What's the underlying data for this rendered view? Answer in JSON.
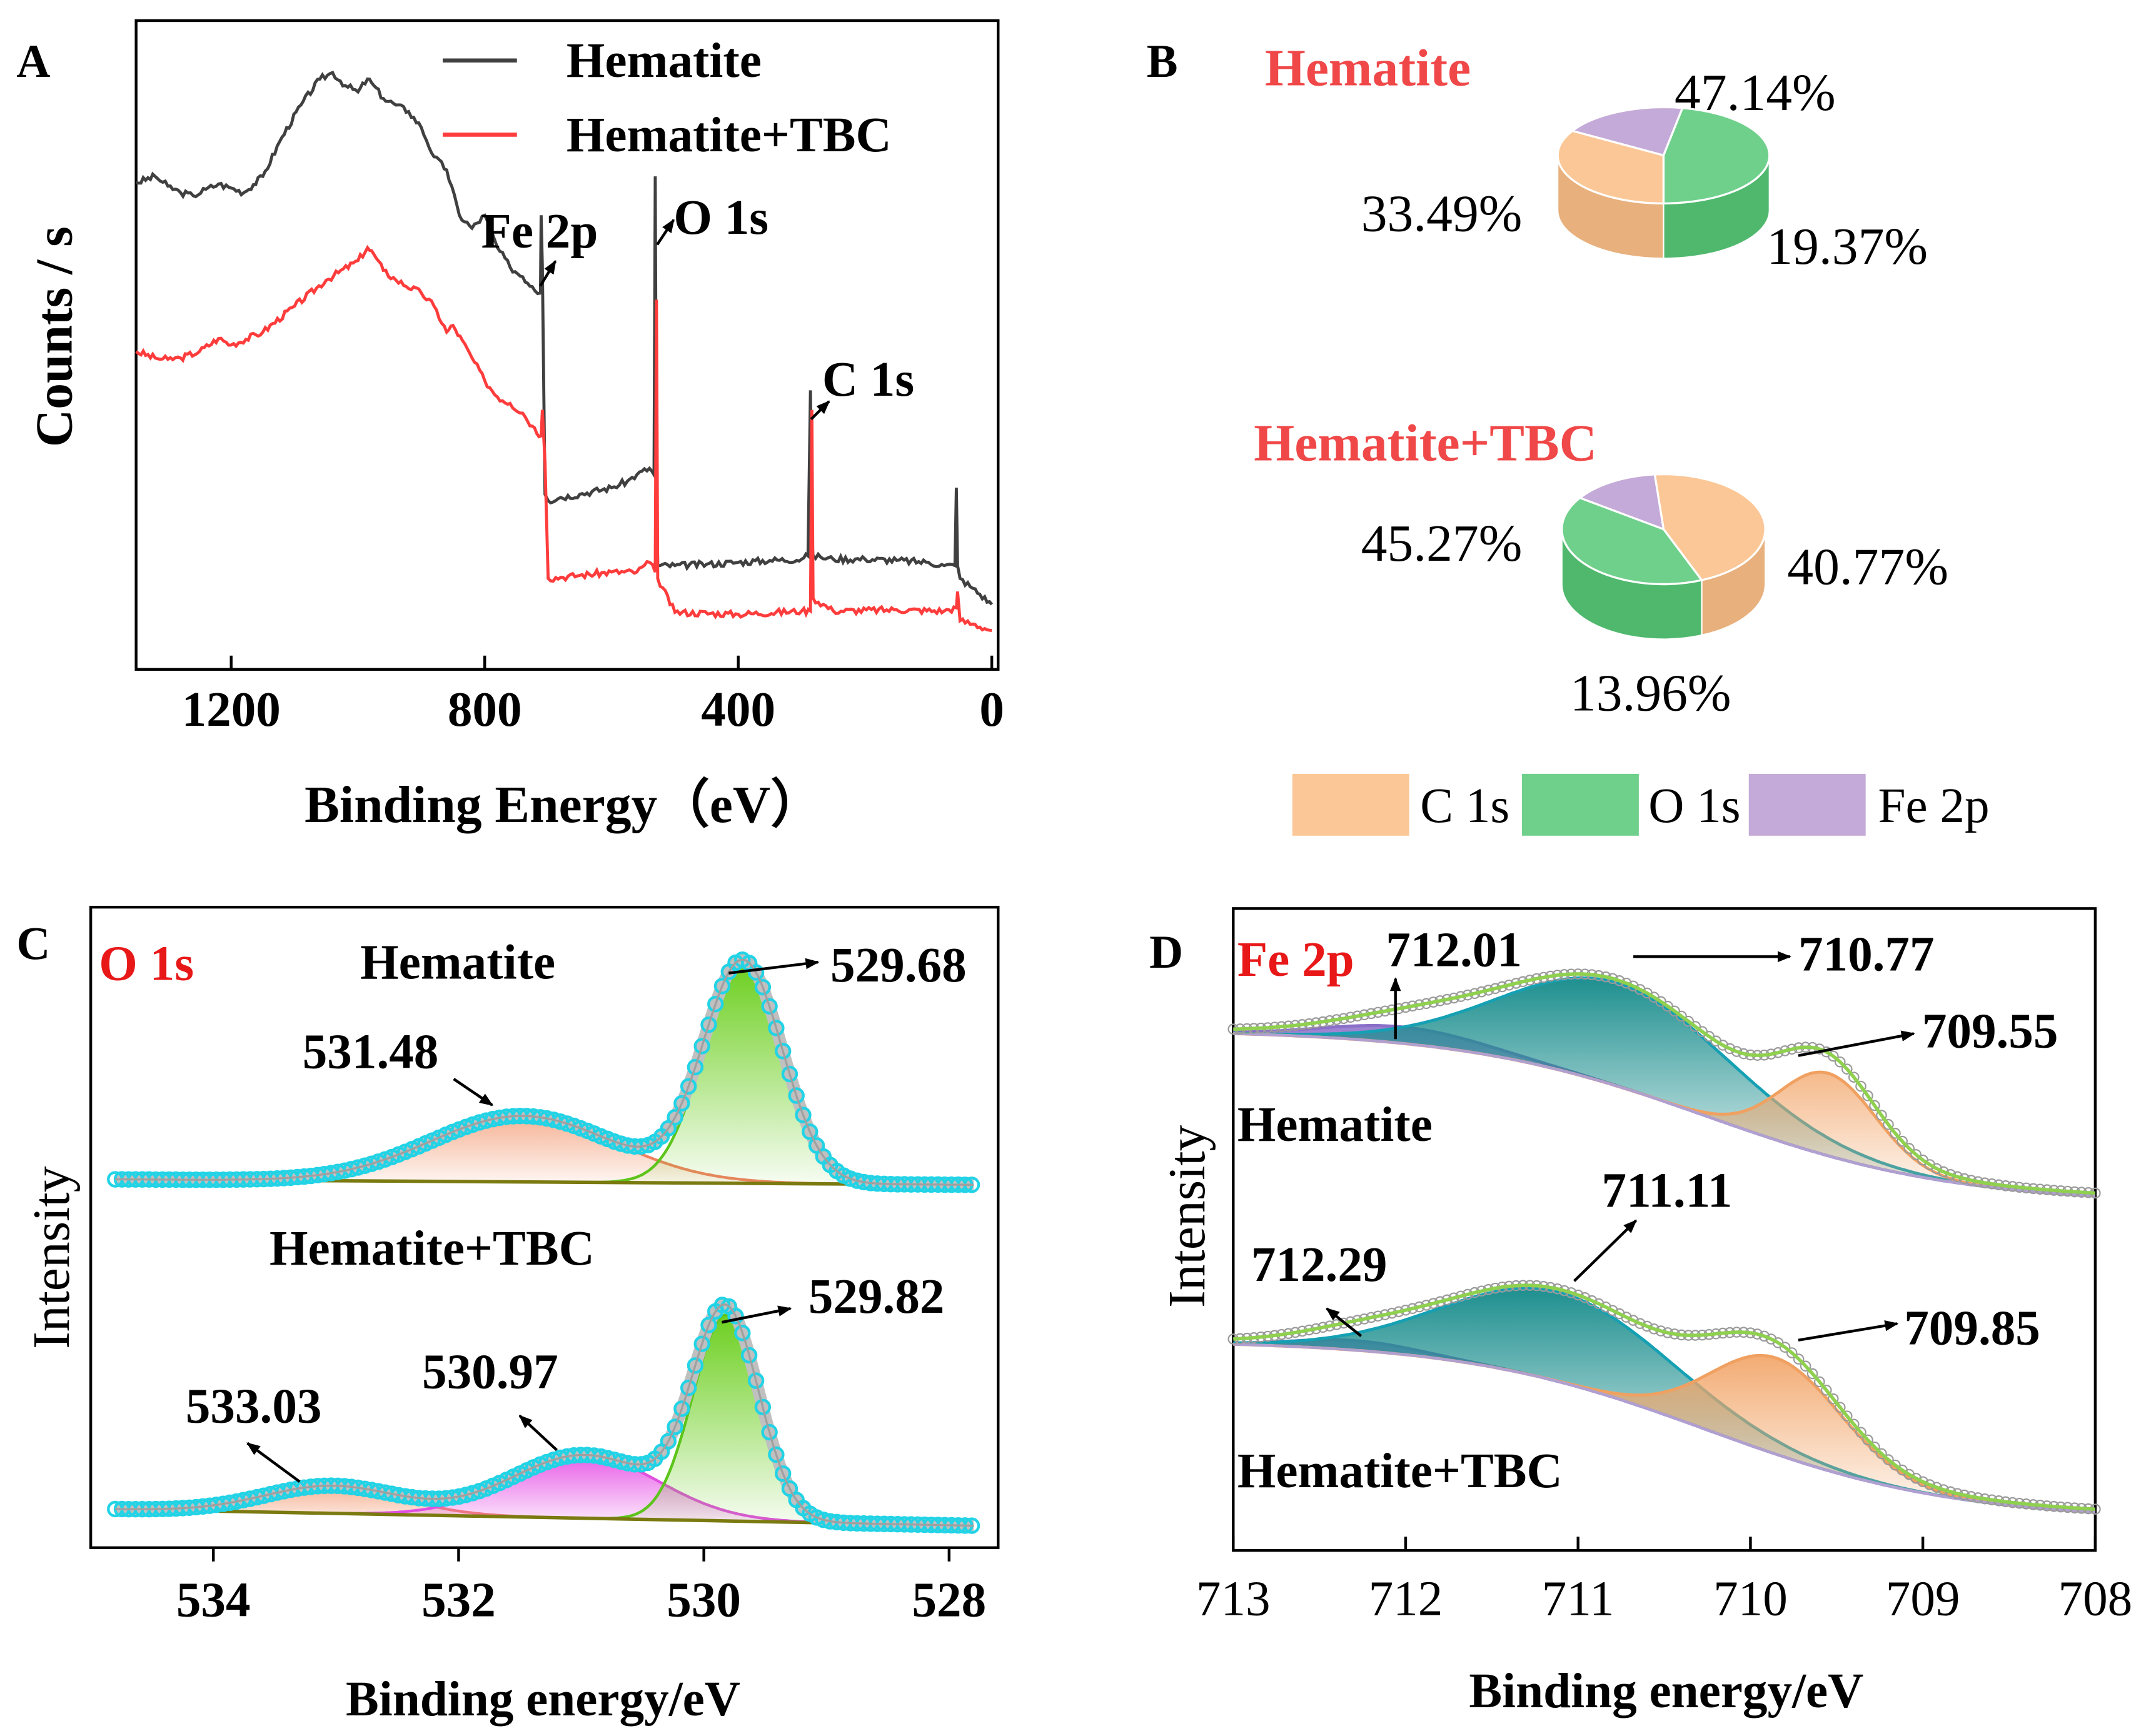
{
  "chart_data": [
    {
      "panel": "A",
      "type": "line",
      "xlabel": "Binding Energy（eV）",
      "ylabel": "Counts / s",
      "xlim": [
        1350,
        -10
      ],
      "ylim": [
        0,
        1000
      ],
      "xticks": [
        "1200",
        "800",
        "400",
        "0"
      ],
      "xtick_values": [
        1200,
        800,
        400,
        0
      ],
      "series": [
        {
          "name": "Hematite",
          "color": "#404040",
          "x": [
            1350,
            1320,
            1300,
            1280,
            1260,
            1240,
            1220,
            1200,
            1180,
            1150,
            1120,
            1090,
            1060,
            1040,
            1020,
            1000,
            985,
            975,
            960,
            940,
            920,
            900,
            880,
            860,
            840,
            820,
            800,
            780,
            760,
            740,
            725,
            712,
            711,
            709,
            705,
            700,
            680,
            650,
            600,
            575,
            560,
            540,
            533,
            531,
            529,
            527,
            500,
            450,
            400,
            350,
            300,
            290,
            286,
            284,
            282,
            270,
            250,
            200,
            150,
            100,
            75,
            58,
            56,
            54,
            50,
            30,
            0
          ],
          "y": [
            750,
            760,
            745,
            735,
            730,
            740,
            748,
            742,
            735,
            760,
            820,
            870,
            910,
            920,
            900,
            890,
            910,
            900,
            880,
            870,
            860,
            835,
            790,
            770,
            700,
            680,
            700,
            650,
            620,
            605,
            590,
            580,
            700,
            620,
            270,
            260,
            265,
            270,
            280,
            290,
            300,
            310,
            300,
            760,
            290,
            160,
            160,
            162,
            165,
            168,
            170,
            175,
            430,
            200,
            175,
            173,
            170,
            170,
            168,
            165,
            160,
            160,
            280,
            160,
            140,
            125,
            100
          ]
        },
        {
          "name": "Hematite+TBC",
          "color": "#ff3c3c",
          "x": [
            1350,
            1320,
            1300,
            1280,
            1250,
            1220,
            1200,
            1150,
            1100,
            1050,
            1000,
            985,
            975,
            960,
            940,
            900,
            880,
            860,
            850,
            820,
            800,
            780,
            760,
            740,
            725,
            711,
            709,
            705,
            700,
            680,
            650,
            600,
            560,
            540,
            531,
            529,
            527,
            500,
            400,
            300,
            286,
            284,
            282,
            250,
            150,
            75,
            56,
            54,
            50,
            30,
            0
          ],
          "y": [
            490,
            480,
            478,
            480,
            490,
            510,
            500,
            520,
            560,
            600,
            630,
            650,
            640,
            615,
            600,
            580,
            560,
            520,
            530,
            480,
            445,
            420,
            410,
            395,
            375,
            360,
            400,
            320,
            140,
            142,
            145,
            150,
            150,
            165,
            150,
            570,
            140,
            88,
            85,
            90,
            90,
            400,
            110,
            90,
            92,
            90,
            95,
            120,
            75,
            70,
            60
          ]
        }
      ],
      "annotations": [
        "Fe 2p",
        "O 1s",
        "C 1s"
      ]
    },
    {
      "panel": "B",
      "type": "pie",
      "legend": [
        "C 1s",
        "O 1s",
        "Fe 2p"
      ],
      "legend_colors": [
        "#fbc796",
        "#6fd08c",
        "#c4aad8"
      ],
      "pies": [
        {
          "title": "Hematite",
          "labels": [
            "C 1s",
            "O 1s",
            "Fe 2p"
          ],
          "values": [
            33.49,
            47.14,
            19.37
          ],
          "value_labels": [
            "33.49%",
            "47.14%",
            "19.37%"
          ]
        },
        {
          "title": "Hematite+TBC",
          "labels": [
            "C 1s",
            "O 1s",
            "Fe 2p"
          ],
          "values": [
            45.27,
            40.77,
            13.96
          ],
          "value_labels": [
            "45.27%",
            "40.77%",
            "13.96%"
          ]
        }
      ]
    },
    {
      "panel": "C",
      "type": "area",
      "title": "O 1s",
      "xlabel": "Binding energy/eV",
      "ylabel": "Intensity",
      "xlim": [
        535,
        527.6
      ],
      "xticks": [
        "534",
        "532",
        "530",
        "528"
      ],
      "xtick_values": [
        534,
        532,
        530,
        528
      ],
      "spectra": [
        {
          "sample": "Hematite",
          "peaks": [
            {
              "center": 531.48,
              "label": "531.48",
              "color": "#f4a582"
            },
            {
              "center": 529.68,
              "label": "529.68",
              "color": "#7ed321"
            }
          ]
        },
        {
          "sample": "Hematite+TBC",
          "peaks": [
            {
              "center": 533.03,
              "label": "533.03",
              "color": "#f4a582"
            },
            {
              "center": 530.97,
              "label": "530.97",
              "color": "#e85ee8"
            },
            {
              "center": 529.82,
              "label": "529.82",
              "color": "#7ed321"
            }
          ]
        }
      ]
    },
    {
      "panel": "D",
      "type": "area",
      "title": "Fe 2p",
      "xlabel": "Binding energy/eV",
      "ylabel": "Intensity",
      "xlim": [
        713,
        708
      ],
      "xticks": [
        "713",
        "712",
        "711",
        "710",
        "709",
        "708"
      ],
      "xtick_values": [
        713,
        712,
        711,
        710,
        709,
        708
      ],
      "spectra": [
        {
          "sample": "Hematite",
          "peaks": [
            {
              "center": 712.01,
              "label": "712.01",
              "color": "#9b7fd1"
            },
            {
              "center": 710.77,
              "label": "710.77",
              "color": "#1aa0b5"
            },
            {
              "center": 709.55,
              "label": "709.55",
              "color": "#f2a66a"
            }
          ]
        },
        {
          "sample": "Hematite+TBC",
          "peaks": [
            {
              "center": 712.29,
              "label": "712.29",
              "color": "#9b7fd1"
            },
            {
              "center": 711.11,
              "label": "711.11",
              "color": "#1aa0b5"
            },
            {
              "center": 709.85,
              "label": "709.85",
              "color": "#f2a66a"
            }
          ]
        }
      ]
    }
  ],
  "panel_letters": [
    "A",
    "B",
    "C",
    "D"
  ]
}
